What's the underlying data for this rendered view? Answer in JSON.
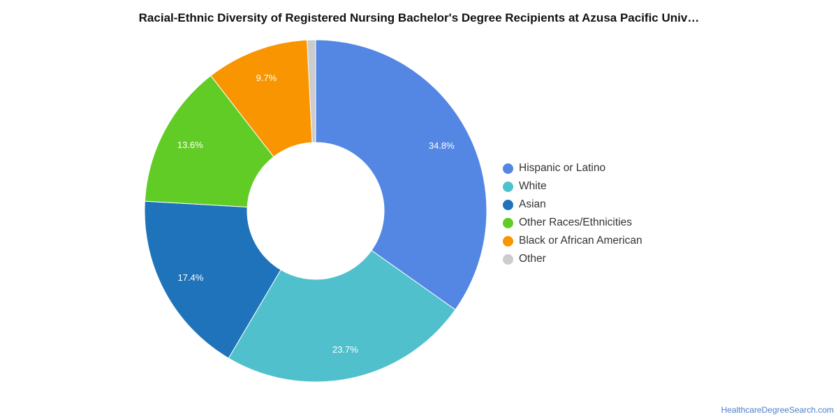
{
  "chart_data": {
    "type": "pie",
    "donut": true,
    "title": "Racial-Ethnic Diversity of Registered Nursing Bachelor's Degree Recipients at Azusa Pacific Univ…",
    "categories": [
      "Hispanic or Latino",
      "White",
      "Asian",
      "Other Races/Ethnicities",
      "Black or African American",
      "Other"
    ],
    "values": [
      34.8,
      23.7,
      17.4,
      13.6,
      9.7,
      0.8
    ],
    "labels": [
      "34.8%",
      "23.7%",
      "17.4%",
      "13.6%",
      "9.7%",
      ""
    ],
    "colors": [
      "#5486e3",
      "#50c0cd",
      "#1f73bb",
      "#62cc26",
      "#f99500",
      "#cccccc"
    ],
    "legend_position": "right"
  },
  "source": "HealthcareDegreeSearch.com"
}
